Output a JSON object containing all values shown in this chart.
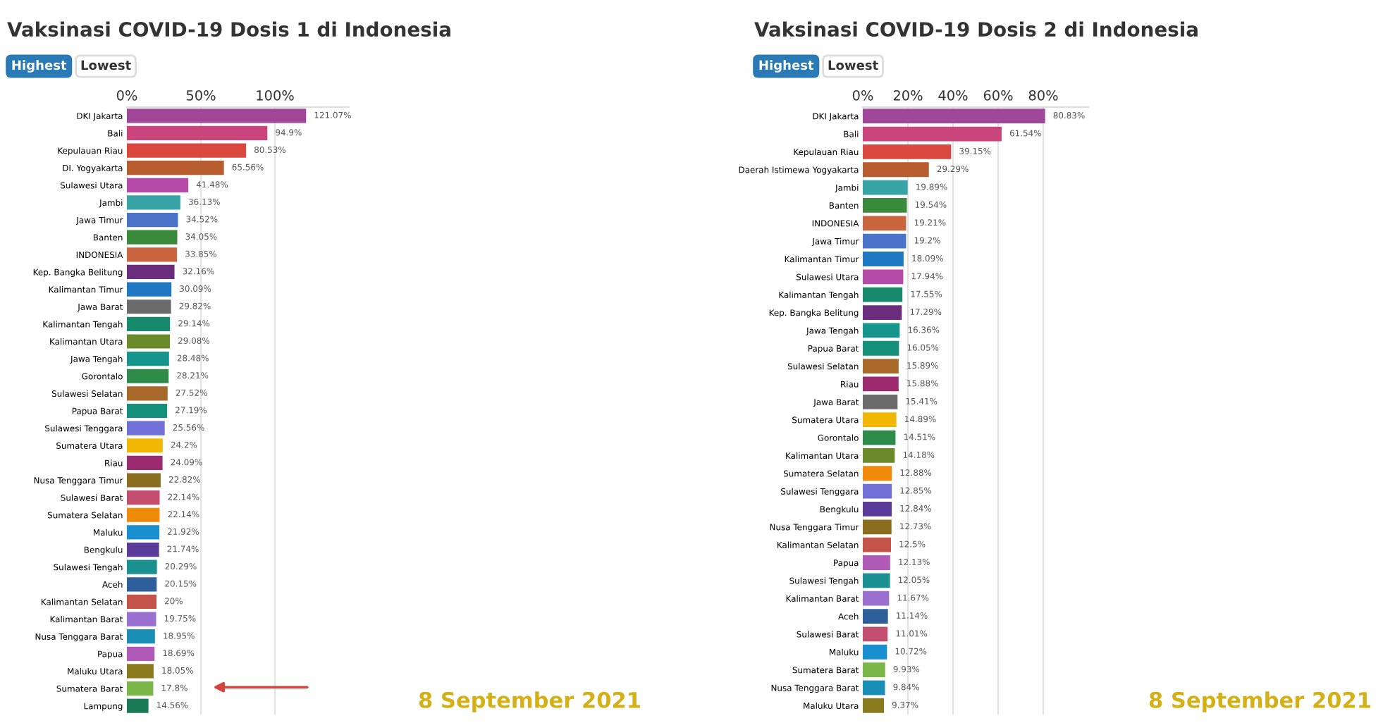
{
  "chart_data": [
    {
      "type": "bar",
      "orientation": "horizontal",
      "title": "Vaksinasi COVID-19 Dosis 1 di Indonesia",
      "grid": "x",
      "annotations": [
        "Highest",
        "Lowest",
        "8 September 2021"
      ],
      "xlim": [
        0,
        150
      ],
      "xticks": [
        {
          "value": 0,
          "label": "0%"
        },
        {
          "value": 50,
          "label": "50%"
        },
        {
          "value": 100,
          "label": "100%"
        }
      ],
      "categories": [
        "DKI Jakarta",
        "Bali",
        "Kepulauan Riau",
        "DI. Yogyakarta",
        "Sulawesi Utara",
        "Jambi",
        "Jawa Timur",
        "Banten",
        "INDONESIA",
        "Kep. Bangka Belitung",
        "Kalimantan Timur",
        "Jawa Barat",
        "Kalimantan Tengah",
        "Kalimantan Utara",
        "Jawa Tengah",
        "Gorontalo",
        "Sulawesi Selatan",
        "Papua Barat",
        "Sulawesi Tenggara",
        "Sumatera Utara",
        "Riau",
        "Nusa Tenggara Timur",
        "Sulawesi Barat",
        "Sumatera Selatan",
        "Maluku",
        "Bengkulu",
        "Sulawesi Tengah",
        "Aceh",
        "Kalimantan Selatan",
        "Kalimantan Barat",
        "Nusa Tenggara Barat",
        "Papua",
        "Maluku Utara",
        "Sumatera Barat",
        "Lampung"
      ],
      "values": [
        121.07,
        94.9,
        80.53,
        65.56,
        41.48,
        36.13,
        34.52,
        34.05,
        33.85,
        32.16,
        30.09,
        29.82,
        29.14,
        29.08,
        28.48,
        28.21,
        27.52,
        27.19,
        25.56,
        24.2,
        24.09,
        22.82,
        22.14,
        22.14,
        21.92,
        21.74,
        20.29,
        20.15,
        20,
        19.75,
        18.95,
        18.69,
        18.05,
        17.8,
        14.56
      ],
      "value_labels": [
        "121.07%",
        "94.9%",
        "80.53%",
        "65.56%",
        "41.48%",
        "36.13%",
        "34.52%",
        "34.05%",
        "33.85%",
        "32.16%",
        "30.09%",
        "29.82%",
        "29.14%",
        "29.08%",
        "28.48%",
        "28.21%",
        "27.52%",
        "27.19%",
        "25.56%",
        "24.2%",
        "24.09%",
        "22.82%",
        "22.14%",
        "22.14%",
        "21.92%",
        "21.74%",
        "20.29%",
        "20.15%",
        "20%",
        "19.75%",
        "18.95%",
        "18.69%",
        "18.05%",
        "17.8%",
        "14.56%"
      ],
      "colors": [
        "#a0479a",
        "#c9457c",
        "#d9473f",
        "#b75d2f",
        "#b54aa8",
        "#38a3a5",
        "#4a73c9",
        "#3a8a3c",
        "#c8643e",
        "#6b2d7d",
        "#1e78c2",
        "#6b6b6b",
        "#18896c",
        "#6b8a2a",
        "#15958c",
        "#2e8b4a",
        "#a8692a",
        "#15907a",
        "#6f6fd6",
        "#f2b705",
        "#9b2a6e",
        "#8a6d1e",
        "#c24d6e",
        "#f08a0a",
        "#1a8fcf",
        "#5b3b9a",
        "#1a9090",
        "#2f5f9a",
        "#c4534a",
        "#9b6fcf",
        "#1a8fb5",
        "#b05ab8",
        "#8a7a1e",
        "#7ab648",
        "#1a7a55"
      ]
    },
    {
      "type": "bar",
      "orientation": "horizontal",
      "title": "Vaksinasi COVID-19 Dosis 2 di Indonesia",
      "grid": "x",
      "annotations": [
        "Highest",
        "Lowest",
        "8 September 2021"
      ],
      "xlim": [
        0,
        100
      ],
      "xticks": [
        {
          "value": 0,
          "label": "0%"
        },
        {
          "value": 20,
          "label": "20%"
        },
        {
          "value": 40,
          "label": "40%"
        },
        {
          "value": 60,
          "label": "60%"
        },
        {
          "value": 80,
          "label": "80%"
        }
      ],
      "categories": [
        "DKI Jakarta",
        "Bali",
        "Kepulauan Riau",
        "Daerah Istimewa Yogyakarta",
        "Jambi",
        "Banten",
        "INDONESIA",
        "Jawa Timur",
        "Kalimantan Timur",
        "Sulawesi Utara",
        "Kalimantan Tengah",
        "Kep. Bangka Belitung",
        "Jawa Tengah",
        "Papua Barat",
        "Sulawesi Selatan",
        "Riau",
        "Jawa Barat",
        "Sumatera Utara",
        "Gorontalo",
        "Kalimantan Utara",
        "Sumatera Selatan",
        "Sulawesi Tenggara",
        "Bengkulu",
        "Nusa Tenggara Timur",
        "Kalimantan Selatan",
        "Papua",
        "Sulawesi Tengah",
        "Kalimantan Barat",
        "Aceh",
        "Sulawesi Barat",
        "Maluku",
        "Sumatera Barat",
        "Nusa Tenggara Barat",
        "Maluku Utara"
      ],
      "values": [
        80.83,
        61.54,
        39.15,
        29.29,
        19.89,
        19.54,
        19.21,
        19.2,
        18.09,
        17.94,
        17.55,
        17.29,
        16.36,
        16.05,
        15.89,
        15.88,
        15.41,
        14.89,
        14.51,
        14.18,
        12.88,
        12.85,
        12.84,
        12.73,
        12.5,
        12.13,
        12.05,
        11.67,
        11.14,
        11.01,
        10.72,
        9.93,
        9.84,
        9.37
      ],
      "value_labels": [
        "80.83%",
        "61.54%",
        "39.15%",
        "29.29%",
        "19.89%",
        "19.54%",
        "19.21%",
        "19.2%",
        "18.09%",
        "17.94%",
        "17.55%",
        "17.29%",
        "16.36%",
        "16.05%",
        "15.89%",
        "15.88%",
        "15.41%",
        "14.89%",
        "14.51%",
        "14.18%",
        "12.88%",
        "12.85%",
        "12.84%",
        "12.73%",
        "12.5%",
        "12.13%",
        "12.05%",
        "11.67%",
        "11.14%",
        "11.01%",
        "10.72%",
        "9.93%",
        "9.84%",
        "9.37%"
      ],
      "colors": [
        "#a0479a",
        "#c9457c",
        "#d9473f",
        "#b75d2f",
        "#38a3a5",
        "#3a8a3c",
        "#c8643e",
        "#4a73c9",
        "#1e78c2",
        "#b54aa8",
        "#18896c",
        "#6b2d7d",
        "#15958c",
        "#15907a",
        "#a8692a",
        "#9b2a6e",
        "#6b6b6b",
        "#f2b705",
        "#2e8b4a",
        "#6b8a2a",
        "#f08a0a",
        "#6f6fd6",
        "#5b3b9a",
        "#8a6d1e",
        "#c4534a",
        "#b05ab8",
        "#1a9090",
        "#9b6fcf",
        "#2f5f9a",
        "#c24d6e",
        "#1a8fcf",
        "#7ab648",
        "#1a8fb5",
        "#8a7a1e"
      ]
    }
  ]
}
